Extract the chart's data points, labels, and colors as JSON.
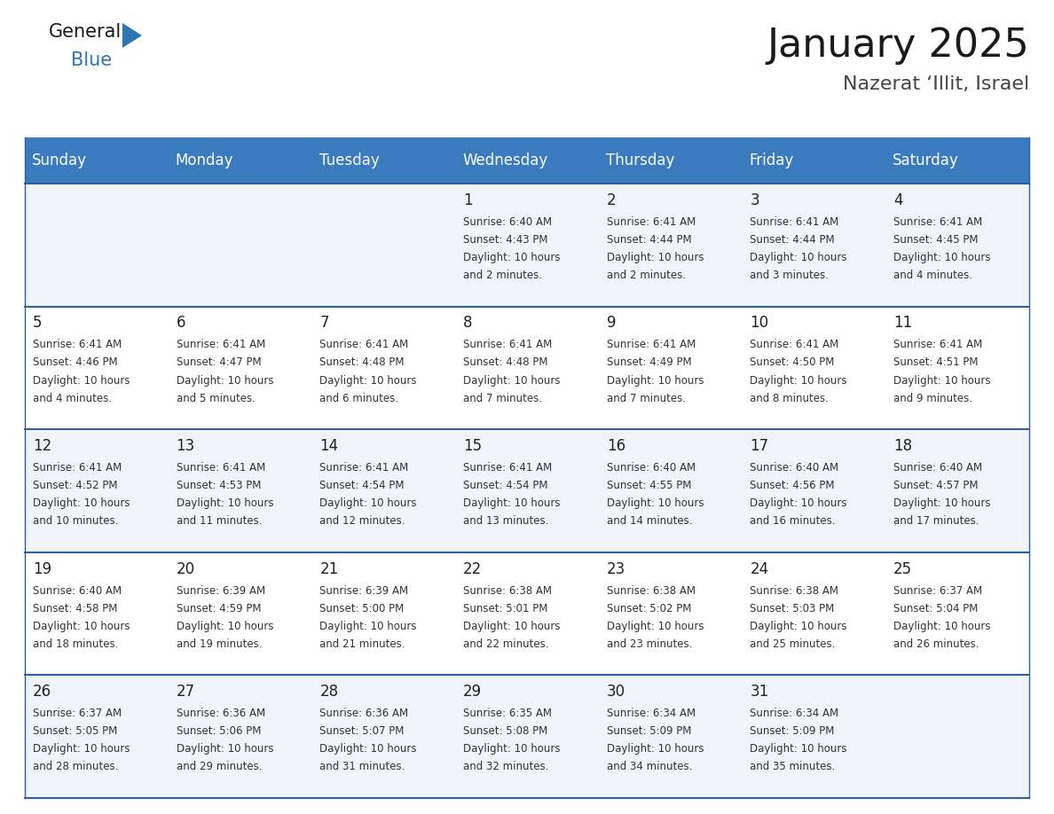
{
  "title": "January 2025",
  "subtitle": "Nazerat ‘Illit, Israel",
  "header_color": "#3a7abf",
  "header_text_color": "#ffffff",
  "cell_bg_even": "#f0f4f8",
  "cell_bg_odd": "#ffffff",
  "separator_color": "#2e5fa3",
  "text_color": "#333333",
  "day_num_color": "#222222",
  "day_headers": [
    "Sunday",
    "Monday",
    "Tuesday",
    "Wednesday",
    "Thursday",
    "Friday",
    "Saturday"
  ],
  "days": [
    {
      "day": 1,
      "col": 3,
      "row": 0,
      "sunrise": "6:40 AM",
      "sunset": "4:43 PM",
      "daylight_h": "10 hours",
      "daylight_m": "2 minutes."
    },
    {
      "day": 2,
      "col": 4,
      "row": 0,
      "sunrise": "6:41 AM",
      "sunset": "4:44 PM",
      "daylight_h": "10 hours",
      "daylight_m": "2 minutes."
    },
    {
      "day": 3,
      "col": 5,
      "row": 0,
      "sunrise": "6:41 AM",
      "sunset": "4:44 PM",
      "daylight_h": "10 hours",
      "daylight_m": "3 minutes."
    },
    {
      "day": 4,
      "col": 6,
      "row": 0,
      "sunrise": "6:41 AM",
      "sunset": "4:45 PM",
      "daylight_h": "10 hours",
      "daylight_m": "4 minutes."
    },
    {
      "day": 5,
      "col": 0,
      "row": 1,
      "sunrise": "6:41 AM",
      "sunset": "4:46 PM",
      "daylight_h": "10 hours",
      "daylight_m": "4 minutes."
    },
    {
      "day": 6,
      "col": 1,
      "row": 1,
      "sunrise": "6:41 AM",
      "sunset": "4:47 PM",
      "daylight_h": "10 hours",
      "daylight_m": "5 minutes."
    },
    {
      "day": 7,
      "col": 2,
      "row": 1,
      "sunrise": "6:41 AM",
      "sunset": "4:48 PM",
      "daylight_h": "10 hours",
      "daylight_m": "6 minutes."
    },
    {
      "day": 8,
      "col": 3,
      "row": 1,
      "sunrise": "6:41 AM",
      "sunset": "4:48 PM",
      "daylight_h": "10 hours",
      "daylight_m": "7 minutes."
    },
    {
      "day": 9,
      "col": 4,
      "row": 1,
      "sunrise": "6:41 AM",
      "sunset": "4:49 PM",
      "daylight_h": "10 hours",
      "daylight_m": "7 minutes."
    },
    {
      "day": 10,
      "col": 5,
      "row": 1,
      "sunrise": "6:41 AM",
      "sunset": "4:50 PM",
      "daylight_h": "10 hours",
      "daylight_m": "8 minutes."
    },
    {
      "day": 11,
      "col": 6,
      "row": 1,
      "sunrise": "6:41 AM",
      "sunset": "4:51 PM",
      "daylight_h": "10 hours",
      "daylight_m": "9 minutes."
    },
    {
      "day": 12,
      "col": 0,
      "row": 2,
      "sunrise": "6:41 AM",
      "sunset": "4:52 PM",
      "daylight_h": "10 hours",
      "daylight_m": "10 minutes."
    },
    {
      "day": 13,
      "col": 1,
      "row": 2,
      "sunrise": "6:41 AM",
      "sunset": "4:53 PM",
      "daylight_h": "10 hours",
      "daylight_m": "11 minutes."
    },
    {
      "day": 14,
      "col": 2,
      "row": 2,
      "sunrise": "6:41 AM",
      "sunset": "4:54 PM",
      "daylight_h": "10 hours",
      "daylight_m": "12 minutes."
    },
    {
      "day": 15,
      "col": 3,
      "row": 2,
      "sunrise": "6:41 AM",
      "sunset": "4:54 PM",
      "daylight_h": "10 hours",
      "daylight_m": "13 minutes."
    },
    {
      "day": 16,
      "col": 4,
      "row": 2,
      "sunrise": "6:40 AM",
      "sunset": "4:55 PM",
      "daylight_h": "10 hours",
      "daylight_m": "14 minutes."
    },
    {
      "day": 17,
      "col": 5,
      "row": 2,
      "sunrise": "6:40 AM",
      "sunset": "4:56 PM",
      "daylight_h": "10 hours",
      "daylight_m": "16 minutes."
    },
    {
      "day": 18,
      "col": 6,
      "row": 2,
      "sunrise": "6:40 AM",
      "sunset": "4:57 PM",
      "daylight_h": "10 hours",
      "daylight_m": "17 minutes."
    },
    {
      "day": 19,
      "col": 0,
      "row": 3,
      "sunrise": "6:40 AM",
      "sunset": "4:58 PM",
      "daylight_h": "10 hours",
      "daylight_m": "18 minutes."
    },
    {
      "day": 20,
      "col": 1,
      "row": 3,
      "sunrise": "6:39 AM",
      "sunset": "4:59 PM",
      "daylight_h": "10 hours",
      "daylight_m": "19 minutes."
    },
    {
      "day": 21,
      "col": 2,
      "row": 3,
      "sunrise": "6:39 AM",
      "sunset": "5:00 PM",
      "daylight_h": "10 hours",
      "daylight_m": "21 minutes."
    },
    {
      "day": 22,
      "col": 3,
      "row": 3,
      "sunrise": "6:38 AM",
      "sunset": "5:01 PM",
      "daylight_h": "10 hours",
      "daylight_m": "22 minutes."
    },
    {
      "day": 23,
      "col": 4,
      "row": 3,
      "sunrise": "6:38 AM",
      "sunset": "5:02 PM",
      "daylight_h": "10 hours",
      "daylight_m": "23 minutes."
    },
    {
      "day": 24,
      "col": 5,
      "row": 3,
      "sunrise": "6:38 AM",
      "sunset": "5:03 PM",
      "daylight_h": "10 hours",
      "daylight_m": "25 minutes."
    },
    {
      "day": 25,
      "col": 6,
      "row": 3,
      "sunrise": "6:37 AM",
      "sunset": "5:04 PM",
      "daylight_h": "10 hours",
      "daylight_m": "26 minutes."
    },
    {
      "day": 26,
      "col": 0,
      "row": 4,
      "sunrise": "6:37 AM",
      "sunset": "5:05 PM",
      "daylight_h": "10 hours",
      "daylight_m": "28 minutes."
    },
    {
      "day": 27,
      "col": 1,
      "row": 4,
      "sunrise": "6:36 AM",
      "sunset": "5:06 PM",
      "daylight_h": "10 hours",
      "daylight_m": "29 minutes."
    },
    {
      "day": 28,
      "col": 2,
      "row": 4,
      "sunrise": "6:36 AM",
      "sunset": "5:07 PM",
      "daylight_h": "10 hours",
      "daylight_m": "31 minutes."
    },
    {
      "day": 29,
      "col": 3,
      "row": 4,
      "sunrise": "6:35 AM",
      "sunset": "5:08 PM",
      "daylight_h": "10 hours",
      "daylight_m": "32 minutes."
    },
    {
      "day": 30,
      "col": 4,
      "row": 4,
      "sunrise": "6:34 AM",
      "sunset": "5:09 PM",
      "daylight_h": "10 hours",
      "daylight_m": "34 minutes."
    },
    {
      "day": 31,
      "col": 5,
      "row": 4,
      "sunrise": "6:34 AM",
      "sunset": "5:09 PM",
      "daylight_h": "10 hours",
      "daylight_m": "35 minutes."
    }
  ],
  "n_rows": 5,
  "n_cols": 7,
  "title_fontsize": 32,
  "subtitle_fontsize": 16,
  "header_fontsize": 12,
  "day_num_fontsize": 12,
  "cell_text_fontsize": 8.5
}
